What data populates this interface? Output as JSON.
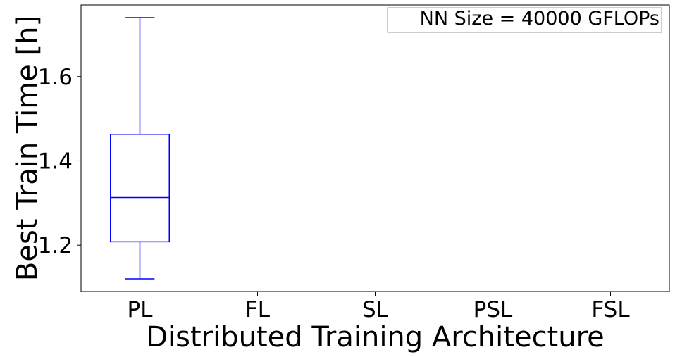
{
  "chart_data": {
    "type": "box",
    "title": "",
    "annotation": "NN Size = 40000 GFLOPs",
    "xlabel": "Distributed Training Architecture",
    "ylabel": "Best Train Time [h]",
    "categories": [
      "PL",
      "FL",
      "SL",
      "PSL",
      "FSL"
    ],
    "ylim": [
      1.09,
      1.77
    ],
    "yticks": [
      "1.2",
      "1.4",
      "1.6"
    ],
    "boxes": [
      {
        "category": "PL",
        "whisker_low": 1.12,
        "q1": 1.208,
        "median": 1.313,
        "q3": 1.463,
        "whisker_high": 1.74
      }
    ],
    "box_color": "#0000ff",
    "grid": false,
    "annotation_position": "top-right"
  }
}
